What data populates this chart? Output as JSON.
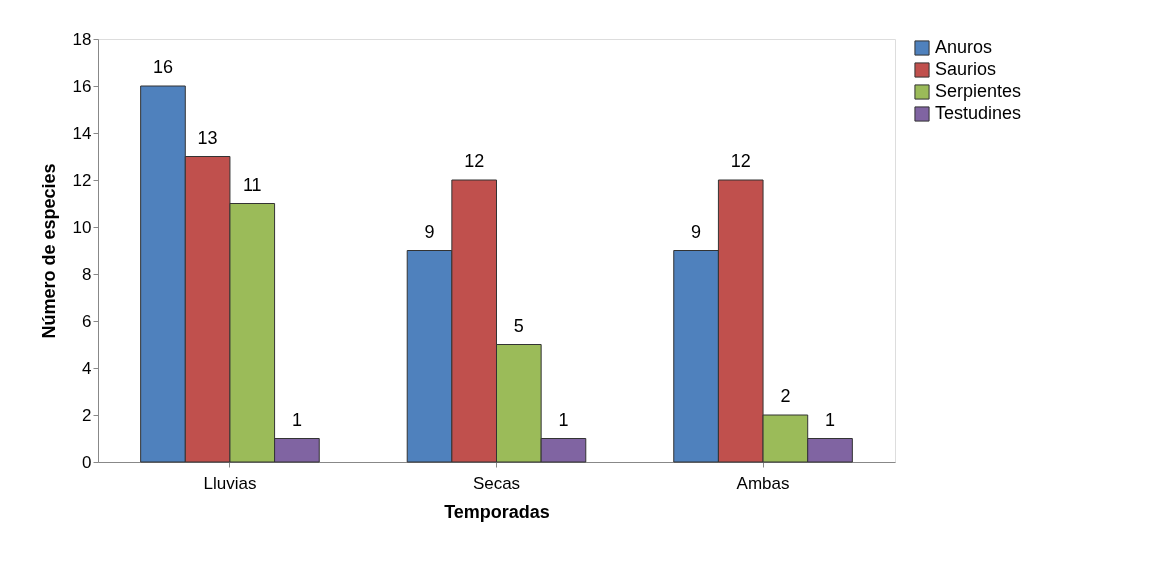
{
  "chart_data": {
    "type": "bar",
    "xlabel": "Temporadas",
    "ylabel": "Número de especies",
    "categories": [
      "Lluvias",
      "Secas",
      "Ambas"
    ],
    "series": [
      {
        "name": "Anuros",
        "color": "#4f81bd",
        "values": [
          16,
          9,
          9
        ]
      },
      {
        "name": "Saurios",
        "color": "#c0504d",
        "values": [
          13,
          12,
          12
        ]
      },
      {
        "name": "Serpientes",
        "color": "#9bbb59",
        "values": [
          11,
          5,
          2
        ]
      },
      {
        "name": "Testudines",
        "color": "#8064a2",
        "values": [
          1,
          1,
          1
        ]
      }
    ],
    "ylim": [
      0,
      18
    ],
    "yticks": [
      0,
      2,
      4,
      6,
      8,
      10,
      12,
      14,
      16,
      18
    ],
    "grid": false,
    "legend": "right",
    "data_labels": true
  }
}
